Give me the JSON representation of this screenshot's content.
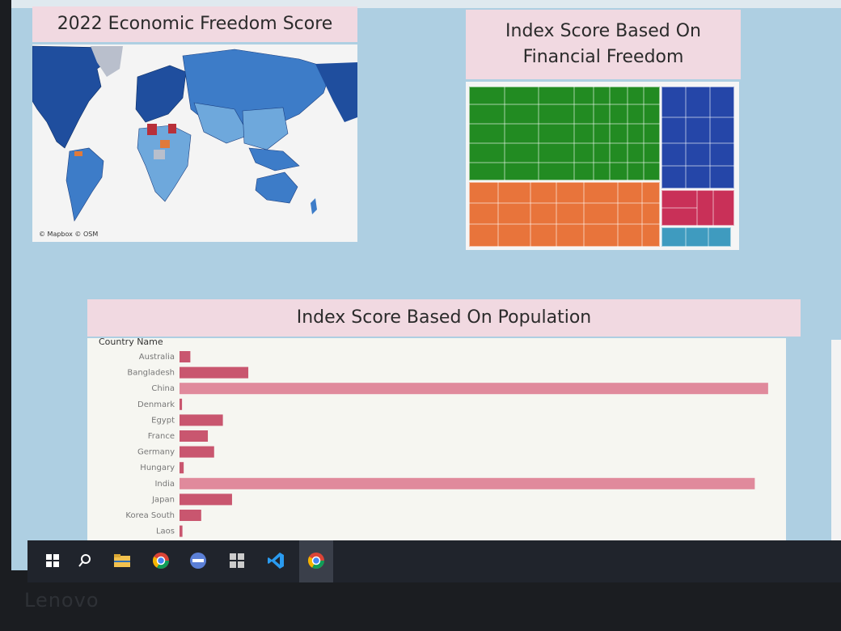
{
  "dashboard": {
    "map_title": "2022 Economic Freedom Score",
    "map_credit": "© Mapbox © OSM",
    "treemap_title_line1": "Index Score Based On",
    "treemap_title_line2": "Financial Freedom",
    "bar_title": "Index Score Based On Population"
  },
  "chart_data": {
    "type": "bar",
    "orientation": "horizontal",
    "title": "Index Score Based On Population",
    "ylabel": "Country Name",
    "categories": [
      "Australia",
      "Bangladesh",
      "China",
      "Denmark",
      "Egypt",
      "France",
      "Germany",
      "Hungary",
      "India",
      "Japan",
      "Korea South",
      "Laos"
    ],
    "values": [
      26,
      165,
      1412,
      6,
      104,
      68,
      83,
      10,
      1380,
      126,
      52,
      7
    ],
    "x_ticks": [
      0,
      100,
      200,
      300,
      400,
      500,
      600,
      700,
      800,
      900,
      1000,
      1100,
      1200,
      1300,
      1400
    ],
    "xlim": [
      0,
      1420
    ],
    "bar_color": "#c9566f",
    "bar_color_highlight": "#e08a9c",
    "grid": false
  },
  "treemap_colors": {
    "green": "#228b22",
    "orange": "#e8743b",
    "blue": "#2546a8",
    "crimson": "#c93058",
    "teal": "#3f9bbf"
  },
  "map_colors": {
    "dark_blue": "#1f4e9e",
    "mid_blue": "#3d7cc8",
    "light_blue": "#6ea8dc",
    "red": "#b8303a",
    "orange": "#e07a3a",
    "grey": "#b9bfcc",
    "water": "#f4f4f4"
  },
  "taskbar": {
    "items": [
      "windows-start-icon",
      "search-icon",
      "file-explorer-icon",
      "chrome-icon",
      "app-icon",
      "tiles-app-icon",
      "vscode-icon",
      "chrome-icon-active"
    ]
  },
  "device_brand": "Lenovo"
}
